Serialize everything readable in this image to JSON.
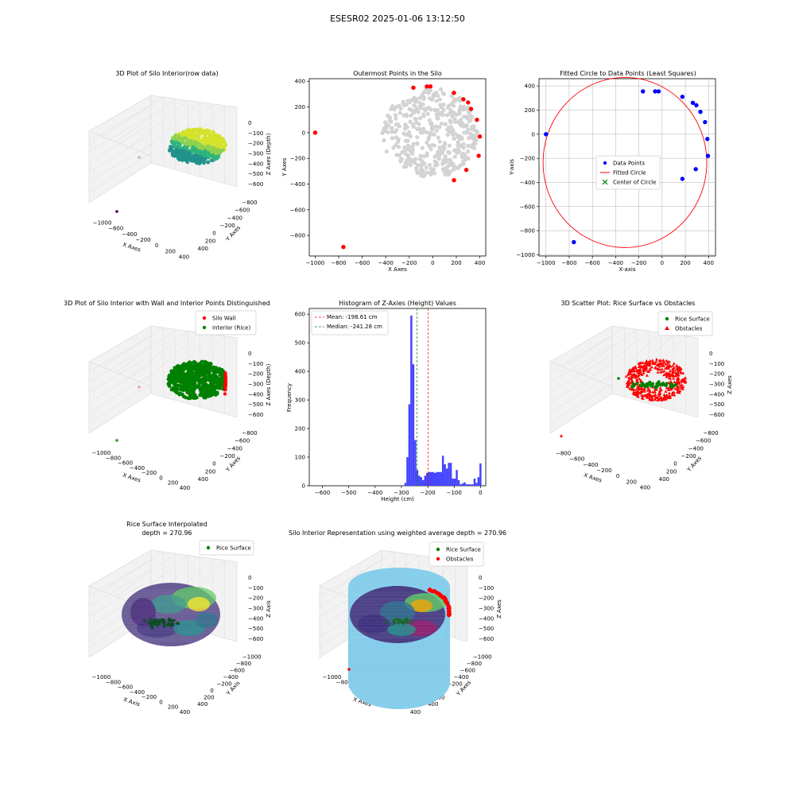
{
  "figure": {
    "title": "ESESR02 2025-01-06 13:12:50"
  },
  "panels": {
    "raw3d": {
      "title": "3D Plot of Silo Interior(row data)",
      "xlabel": "X Axes",
      "ylabel": "Y Axes",
      "zlabel": "Z Axes (Depth)",
      "xticks": [
        "−1000",
        "−600",
        "−400",
        "−200",
        "0",
        "200",
        "400"
      ],
      "yticks": [
        "400",
        "200",
        "0",
        "−200",
        "−400",
        "−600",
        "−800"
      ],
      "zticks": [
        "0",
        "−100",
        "−200",
        "−300",
        "−400",
        "−500",
        "−600"
      ]
    },
    "outer": {
      "title": "Outermost Points in the Silo",
      "xlabel": "X Axes",
      "ylabel": "Y Axes",
      "xticks": [
        "−1000",
        "−800",
        "−600",
        "−400",
        "−200",
        "0",
        "200",
        "400"
      ],
      "yticks": [
        "400",
        "200",
        "0",
        "−200",
        "−400",
        "−600",
        "−800"
      ]
    },
    "circle": {
      "title": "Fitted Circle to Data Points (Least Squares)",
      "xlabel": "X-axis",
      "ylabel": "Y-axis",
      "xticks": [
        "−1000",
        "−800",
        "−600",
        "−400",
        "−200",
        "0",
        "200",
        "400"
      ],
      "yticks": [
        "400",
        "200",
        "0",
        "−200",
        "−400",
        "−600",
        "−800",
        "−1000"
      ],
      "legend": [
        "Data Points",
        "Fitted Circle",
        "Center of Circle"
      ]
    },
    "wall3d": {
      "title": "3D Plot of Silo Interior with Wall and Interior Points Distinguished",
      "xlabel": "X Axes",
      "ylabel": "Y Axes",
      "zlabel": "Z Axes (Depth)",
      "legend": [
        "Silo Wall",
        "Interior (Rice)"
      ],
      "xticks": [
        "−1000",
        "−800",
        "−600",
        "−400",
        "−200",
        "0",
        "200",
        "400"
      ],
      "yticks": [
        "400",
        "200",
        "0",
        "−200",
        "−400",
        "−600",
        "−800"
      ],
      "zticks": [
        "0",
        "−100",
        "−200",
        "−300",
        "−400",
        "−500",
        "−600"
      ]
    },
    "hist": {
      "title": "Histogram of Z-Axies (Height) Values",
      "xlabel": "Height (cm)",
      "ylabel": "Frequency",
      "xticks": [
        "−600",
        "−500",
        "−400",
        "−300",
        "−200",
        "−100",
        "0"
      ],
      "yticks": [
        "0",
        "100",
        "200",
        "300",
        "400",
        "500",
        "600"
      ],
      "legend": [
        "Mean: -198.61 cm",
        "Median: -241.28 cm"
      ]
    },
    "scatter3d": {
      "title": "3D Scatter Plot: Rice Surface vs Obstacles",
      "xlabel": "X Axes",
      "ylabel": "Y Axes",
      "zlabel": "Z Axes",
      "legend": [
        "Rice Surface",
        "Obstacles"
      ],
      "xticks": [
        "−800",
        "−600",
        "−400",
        "−200",
        "0",
        "200",
        "400"
      ],
      "yticks": [
        "400",
        "200",
        "0",
        "−200",
        "−400",
        "−600",
        "−800"
      ],
      "zticks": [
        "0",
        "−100",
        "−200",
        "−300",
        "−400",
        "−500",
        "−600"
      ]
    },
    "interp3d": {
      "title_line1": "Rice Surface Interpolated",
      "title_line2": "depth = 270.96",
      "xlabel": "X Axis",
      "ylabel": "Y Axis",
      "zlabel": "Z Axis",
      "legend": [
        "Rice Surface"
      ],
      "xticks": [
        "−1000",
        "−800",
        "−600",
        "−400",
        "−200",
        "0",
        "200",
        "400"
      ],
      "yticks": [
        "400",
        "200",
        "0",
        "−200",
        "−400",
        "−600",
        "−800",
        "−1000"
      ],
      "zticks": [
        "0",
        "−100",
        "−200",
        "−300",
        "−400",
        "−500",
        "−600"
      ]
    },
    "repr3d": {
      "title": "Silo Interior Representation using weighted average depth = 270.96",
      "xlabel": "X Axes",
      "ylabel": "Y Axes",
      "zlabel": "Z Axes",
      "legend": [
        "Rice Surface",
        "Obstacles"
      ],
      "xticks": [
        "−1000",
        "−800",
        "−600",
        "−400",
        "−200",
        "0",
        "200",
        "400"
      ],
      "yticks": [
        "400",
        "200",
        "0",
        "−200",
        "−400",
        "−600",
        "−800",
        "−1000"
      ],
      "zticks": [
        "0",
        "−100",
        "−200",
        "−300",
        "−400",
        "−500",
        "−600"
      ]
    }
  },
  "chart_data": [
    {
      "type": "scatter",
      "chart": "outer",
      "title": "Outermost Points in the Silo",
      "xlabel": "X Axes",
      "ylabel": "Y Axes",
      "xlim": [
        -1050,
        450
      ],
      "ylim": [
        -960,
        420
      ],
      "series": [
        {
          "color": "#d3d3d3",
          "cloud": {
            "cx": 0,
            "cy": 0,
            "rx": 380,
            "ry": 350,
            "count": 420
          }
        },
        {
          "color": "#ff0000",
          "x": [
            -1000,
            -760,
            -165,
            -50,
            -20,
            180,
            260,
            300,
            325,
            375,
            400,
            390,
            285,
            180
          ],
          "y": [
            0,
            -890,
            350,
            360,
            360,
            310,
            260,
            235,
            185,
            100,
            -30,
            -180,
            -290,
            -370
          ]
        }
      ]
    },
    {
      "type": "scatter",
      "chart": "circle",
      "title": "Fitted Circle to Data Points (Least Squares)",
      "xlabel": "X-axis",
      "ylabel": "Y-axis",
      "xlim": [
        -1060,
        460
      ],
      "ylim": [
        -1010,
        460
      ],
      "series": [
        {
          "name": "Data Points",
          "color": "#0000ff",
          "x": [
            -1000,
            -760,
            -165,
            -60,
            -30,
            175,
            265,
            295,
            330,
            370,
            390,
            395,
            290,
            175
          ],
          "y": [
            0,
            -895,
            355,
            355,
            355,
            310,
            260,
            240,
            185,
            100,
            -40,
            -180,
            -290,
            -370
          ]
        },
        {
          "name": "Fitted Circle",
          "color": "#ff0000",
          "center": [
            -320,
            -235
          ],
          "radius": 705
        },
        {
          "name": "Center of Circle",
          "color": "#008000",
          "x": [
            -320
          ],
          "y": [
            -235
          ]
        }
      ]
    },
    {
      "type": "bar",
      "chart": "hist",
      "title": "Histogram of Z-Axies (Height) Values",
      "xlabel": "Height (cm)",
      "ylabel": "Frequency",
      "xlim": [
        -650,
        20
      ],
      "ylim": [
        0,
        620
      ],
      "color": "#4444ff",
      "bin_width": 7.5,
      "bins": [
        [
          -285,
          10
        ],
        [
          -277.5,
          100
        ],
        [
          -270,
          285
        ],
        [
          -262.5,
          595
        ],
        [
          -255,
          425
        ],
        [
          -247.5,
          160
        ],
        [
          -240,
          55
        ],
        [
          -232.5,
          35
        ],
        [
          -225,
          30
        ],
        [
          -217.5,
          20
        ],
        [
          -210,
          35
        ],
        [
          -202.5,
          45
        ],
        [
          -195,
          48
        ],
        [
          -187.5,
          48
        ],
        [
          -180,
          48
        ],
        [
          -172.5,
          45
        ],
        [
          -165,
          48
        ],
        [
          -157.5,
          48
        ],
        [
          -150,
          48
        ],
        [
          -142.5,
          105
        ],
        [
          -135,
          75
        ],
        [
          -127.5,
          60
        ],
        [
          -120,
          80
        ],
        [
          -112.5,
          80
        ],
        [
          -105,
          25
        ],
        [
          -97.5,
          25
        ],
        [
          -90,
          55
        ],
        [
          -82.5,
          20
        ],
        [
          -75,
          5
        ],
        [
          -67.5,
          8
        ],
        [
          -60,
          12
        ],
        [
          -52.5,
          5
        ],
        [
          -45,
          5
        ],
        [
          -37.5,
          5
        ],
        [
          -30,
          5
        ],
        [
          -22.5,
          25
        ],
        [
          -15,
          10
        ],
        [
          -7.5,
          30
        ],
        [
          0,
          78
        ]
      ],
      "mean": -198.61,
      "median": -241.28
    }
  ]
}
